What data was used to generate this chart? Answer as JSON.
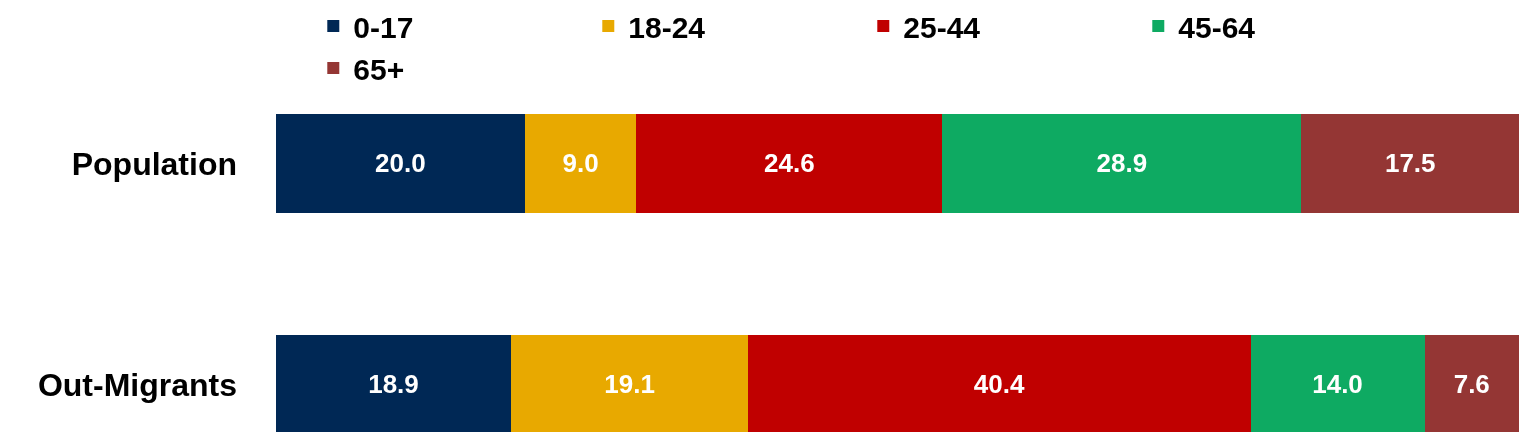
{
  "chart_data": {
    "type": "bar",
    "orientation": "horizontal",
    "stacked": true,
    "legend": "top",
    "tick_labels": "y",
    "categories": [
      "Population",
      "Out-Migrants"
    ],
    "xlim": [
      0,
      100
    ],
    "series": [
      {
        "name": "0-17",
        "color": "#002855",
        "values": [
          20.0,
          18.9
        ],
        "value_labels": [
          "20.0",
          "18.9"
        ]
      },
      {
        "name": "18-24",
        "color": "#e8a900",
        "values": [
          9.0,
          19.1
        ],
        "value_labels": [
          "9.0",
          "19.1"
        ]
      },
      {
        "name": "25-44",
        "color": "#c00000",
        "values": [
          24.6,
          40.4
        ],
        "value_labels": [
          "24.6",
          "40.4"
        ]
      },
      {
        "name": "45-64",
        "color": "#0eaa62",
        "values": [
          28.9,
          14.0
        ],
        "value_labels": [
          "28.9",
          "14.0"
        ]
      },
      {
        "name": "65+",
        "color": "#943634",
        "values": [
          17.5,
          7.6
        ],
        "value_labels": [
          "17.5",
          "7.6"
        ]
      }
    ]
  }
}
